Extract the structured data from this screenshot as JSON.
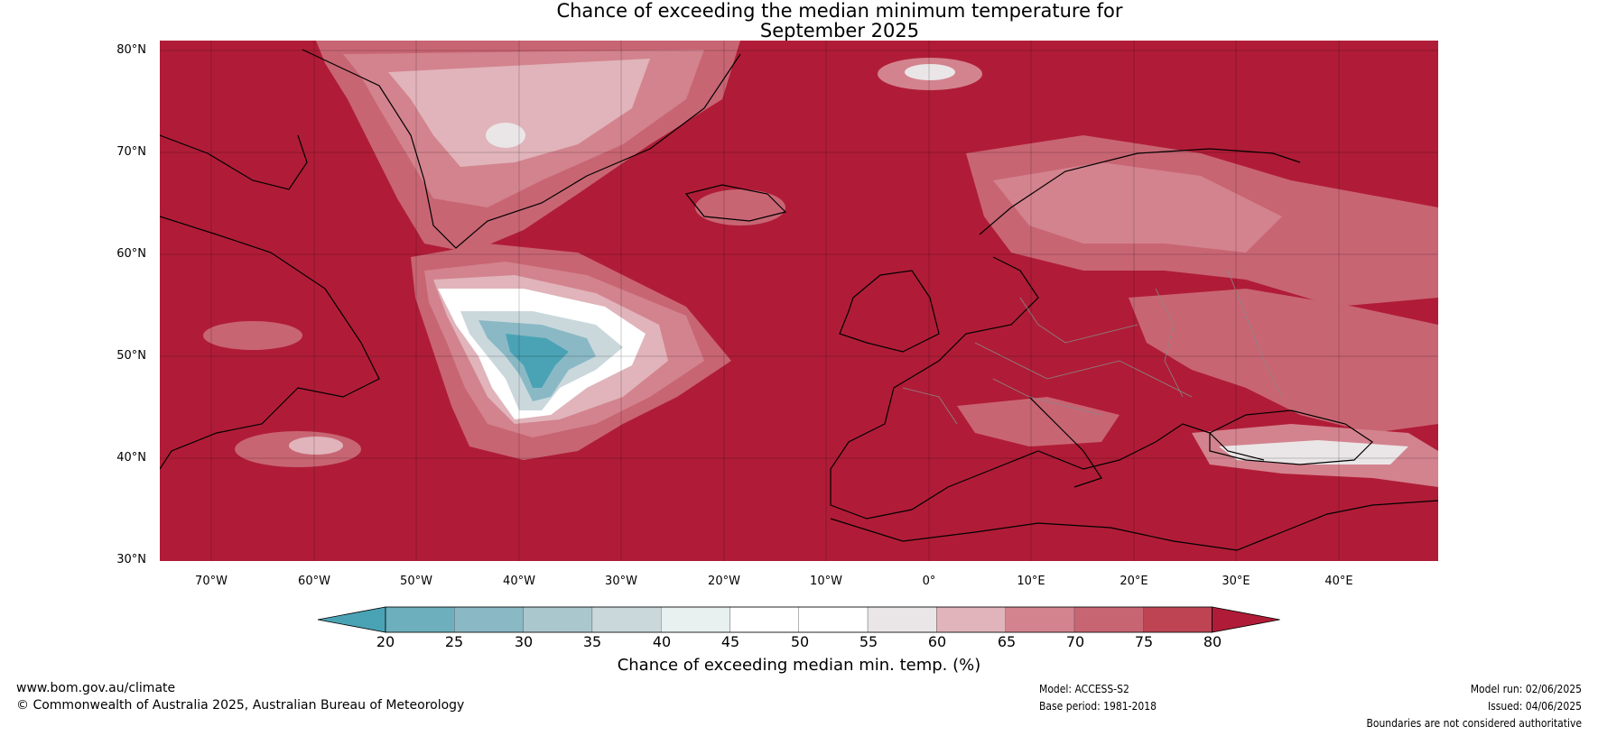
{
  "title": {
    "line1": "Chance of exceeding the median minimum temperature for",
    "line2": "September 2025"
  },
  "axes": {
    "lat_labels": [
      "80°N",
      "70°N",
      "60°N",
      "50°N",
      "40°N",
      "30°N"
    ],
    "lon_labels": [
      "70°W",
      "60°W",
      "50°W",
      "40°W",
      "30°W",
      "20°W",
      "10°W",
      "0°",
      "10°E",
      "20°E",
      "30°E",
      "40°E"
    ]
  },
  "colorbar": {
    "ticks": [
      "20",
      "25",
      "30",
      "35",
      "40",
      "45",
      "50",
      "55",
      "60",
      "65",
      "70",
      "75",
      "80"
    ],
    "label": "Chance of exceeding median min. temp. (%)",
    "colors": [
      "#4aa3b5",
      "#6dafbd",
      "#8ab9c5",
      "#abc7ce",
      "#cad8dc",
      "#e8f0f0",
      "#ffffff",
      "#ffffff",
      "#eae6e7",
      "#e0b4ba",
      "#d3838e",
      "#c86573",
      "#be4454",
      "#b01c37"
    ]
  },
  "footer": {
    "website": "www.bom.gov.au/climate",
    "copyright": "© Commonwealth of Australia 2025, Australian Bureau of Meteorology",
    "model": "Model: ACCESS-S2",
    "base_period": "Base period: 1981-2018",
    "model_run": "Model run: 02/06/2025",
    "issued": "Issued: 04/06/2025",
    "disclaimer": "Boundaries are not considered authoritative"
  },
  "map_colors": {
    "base": "#b01c37",
    "p75": "#c86573",
    "p70": "#d3838e",
    "p65": "#e0b4ba",
    "p55": "#eae6e7",
    "p45": "#e8f0f0",
    "p40": "#cad8dc",
    "p35": "#abc7ce",
    "p25": "#6dafbd",
    "p20": "#4aa3b5"
  }
}
